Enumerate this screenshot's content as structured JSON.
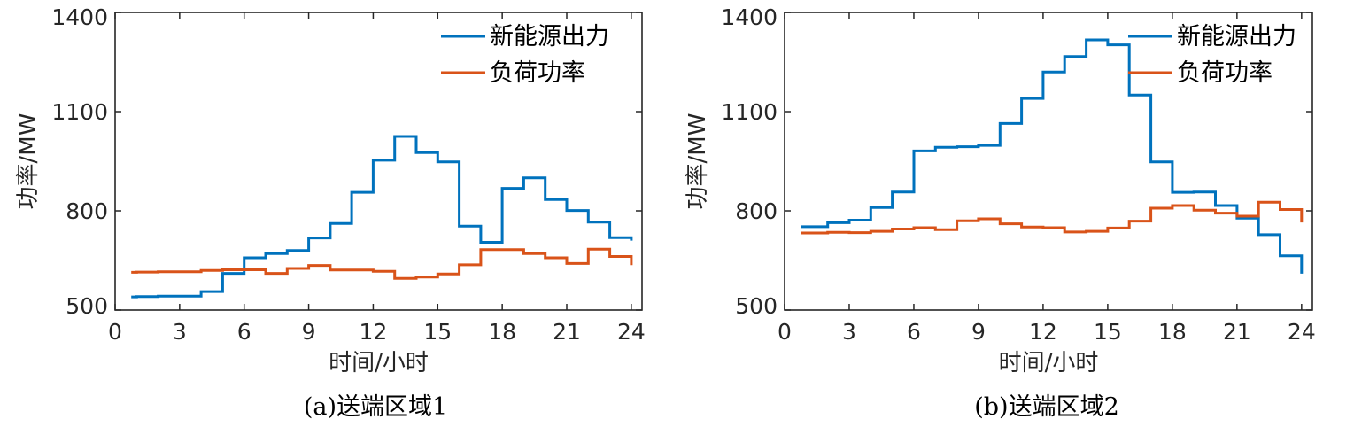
{
  "chart_data": [
    {
      "type": "line",
      "step": true,
      "caption": "(a)送端区域1",
      "xlabel": "时间/小时",
      "ylabel": "功率/MW",
      "xlim": [
        0,
        24.5
      ],
      "ylim": [
        500,
        1400
      ],
      "xticks": [
        0,
        3,
        6,
        9,
        12,
        15,
        18,
        21,
        24
      ],
      "yticks": [
        500,
        800,
        1100,
        1400
      ],
      "legend_position": "top-right",
      "x": [
        0.75,
        1,
        2,
        3,
        4,
        5,
        6,
        7,
        8,
        9,
        10,
        11,
        12,
        13,
        14,
        15,
        16,
        17,
        18,
        19,
        20,
        21,
        22,
        23,
        24
      ],
      "series": [
        {
          "name": "新能源出力",
          "color": "#0072BD",
          "values": [
            540,
            541,
            542,
            542,
            556,
            611,
            658,
            671,
            680,
            718,
            762,
            856,
            953,
            1025,
            976,
            948,
            754,
            705,
            868,
            900,
            834,
            801,
            766,
            719,
            710
          ]
        },
        {
          "name": "负荷功率",
          "color": "#D95319",
          "values": [
            614,
            615,
            616,
            616,
            620,
            622,
            622,
            611,
            626,
            635,
            621,
            621,
            617,
            596,
            600,
            609,
            637,
            683,
            683,
            671,
            658,
            641,
            684,
            662,
            636
          ]
        }
      ]
    },
    {
      "type": "line",
      "step": true,
      "caption": "(b)送端区域2",
      "xlabel": "时间/小时",
      "ylabel": "功率/MW",
      "xlim": [
        0,
        24.5
      ],
      "ylim": [
        500,
        1400
      ],
      "xticks": [
        0,
        3,
        6,
        9,
        12,
        15,
        18,
        21,
        24
      ],
      "yticks": [
        500,
        800,
        1100,
        1400
      ],
      "legend_position": "top-right",
      "x": [
        0.75,
        1,
        2,
        3,
        4,
        5,
        6,
        7,
        8,
        9,
        10,
        11,
        12,
        13,
        14,
        15,
        16,
        17,
        18,
        19,
        20,
        21,
        22,
        23,
        24
      ],
      "series": [
        {
          "name": "新能源出力",
          "color": "#0072BD",
          "values": [
            752,
            752,
            764,
            772,
            810,
            857,
            981,
            992,
            994,
            998,
            1064,
            1140,
            1220,
            1267,
            1317,
            1302,
            1150,
            948,
            856,
            857,
            816,
            778,
            728,
            664,
            610
          ]
        },
        {
          "name": "负荷功率",
          "color": "#D95319",
          "values": [
            733,
            733,
            735,
            734,
            738,
            745,
            749,
            743,
            770,
            776,
            761,
            751,
            749,
            736,
            738,
            748,
            769,
            808,
            816,
            802,
            793,
            784,
            826,
            804,
            765
          ]
        }
      ]
    }
  ]
}
